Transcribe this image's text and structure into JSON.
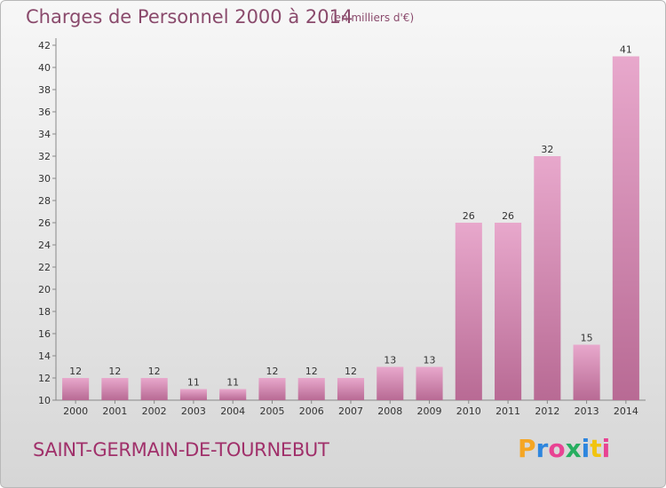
{
  "chart_data": {
    "type": "bar",
    "title": "Charges de Personnel 2000 à 2014",
    "subtitle": "(en milliers d'€)",
    "categories": [
      "2000",
      "2001",
      "2002",
      "2003",
      "2004",
      "2005",
      "2006",
      "2007",
      "2008",
      "2009",
      "2010",
      "2011",
      "2012",
      "2013",
      "2014"
    ],
    "values": [
      12,
      12,
      12,
      11,
      11,
      12,
      12,
      12,
      13,
      13,
      26,
      26,
      32,
      15,
      41
    ],
    "ylim": [
      10,
      42
    ],
    "yticks": [
      10,
      12,
      14,
      16,
      18,
      20,
      22,
      24,
      26,
      28,
      30,
      32,
      34,
      36,
      38,
      40,
      42
    ],
    "ytick_labels": [
      "10",
      "12",
      "14",
      "16",
      "18",
      "20",
      "22",
      "24",
      "26",
      "28",
      "30",
      "32",
      "34",
      "36",
      "38",
      "40",
      "42"
    ],
    "grid": false,
    "colors": {
      "bar_light": "#e8a8cc",
      "bar_dark": "#b86a94",
      "axis": "#888888"
    }
  },
  "footer": {
    "commune": "SAINT-GERMAIN-DE-TOURNEBUT",
    "logo_letters": [
      "P",
      "r",
      "o",
      "x",
      "i",
      "t",
      "i"
    ],
    "logo_colors": [
      "#f5a623",
      "#2e86de",
      "#e84393",
      "#27ae60",
      "#2e86de",
      "#f1c40f",
      "#e84393"
    ]
  }
}
